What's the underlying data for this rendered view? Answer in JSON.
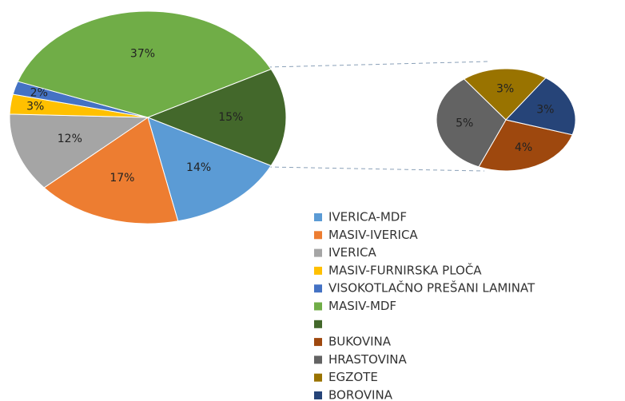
{
  "chart_data": [
    {
      "type": "pie",
      "categories": [
        "IVERICA-MDF",
        "MASIV-IVERICA",
        "IVERICA",
        "MASIV-FURNIRSKA PLOČA",
        "VISOKOTLAČNO PREŠANI LAMINAT",
        "MASIV-MDF",
        null
      ],
      "values": [
        14,
        17,
        12,
        3,
        2,
        37,
        15
      ],
      "value_labels": [
        "14%",
        "17%",
        "12%",
        "3%",
        "2%",
        "37%",
        "15%"
      ],
      "colors": [
        "#5b9bd5",
        "#ed7d31",
        "#a5a5a5",
        "#ffc000",
        "#4472c4",
        "#70ad47",
        "#43682b"
      ]
    },
    {
      "type": "pie",
      "categories": [
        "BUKOVINA",
        "HRASTOVINA",
        "EGZOTE",
        "BOROVINA"
      ],
      "values": [
        4,
        5,
        3,
        3
      ],
      "value_labels": [
        "4%",
        "5%",
        "3%",
        "3%"
      ],
      "colors": [
        "#9e480e",
        "#636363",
        "#997300",
        "#264478"
      ]
    }
  ]
}
